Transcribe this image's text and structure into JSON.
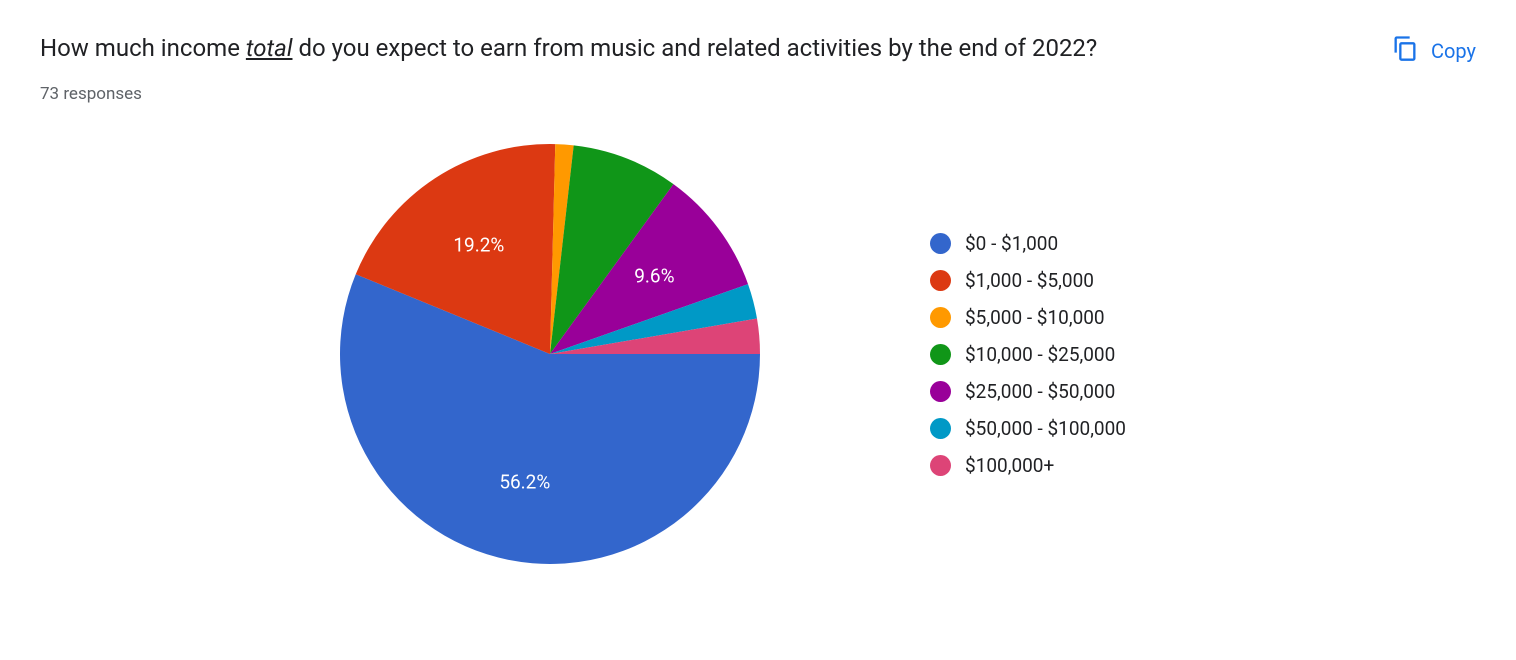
{
  "header": {
    "title_pre": "How much income ",
    "title_underlined": "total",
    "title_post": " do you expect to earn from music and related activities by the end of 2022?",
    "responses": "73 responses",
    "copy_label": "Copy"
  },
  "chart": {
    "type": "pie",
    "background_color": "#ffffff",
    "label_color": "#ffffff",
    "label_fontsize": 19,
    "legend_fontsize": 19,
    "legend_position": "right",
    "slices": [
      {
        "label": "$0 - $1,000",
        "value": 56.2,
        "color": "#3366cc",
        "show_label": true,
        "display": "56.2%"
      },
      {
        "label": "$1,000 - $5,000",
        "value": 19.2,
        "color": "#dc3912",
        "show_label": true,
        "display": "19.2%"
      },
      {
        "label": "$5,000 - $10,000",
        "value": 1.4,
        "color": "#ff9900",
        "show_label": false,
        "display": "1.4%"
      },
      {
        "label": "$10,000 - $25,000",
        "value": 8.2,
        "color": "#109618",
        "show_label": false,
        "display": "8.2%"
      },
      {
        "label": "$25,000 - $50,000",
        "value": 9.6,
        "color": "#990099",
        "show_label": true,
        "display": "9.6%"
      },
      {
        "label": "$50,000 - $100,000",
        "value": 2.7,
        "color": "#0099c6",
        "show_label": false,
        "display": "2.7%"
      },
      {
        "label": "$100,000+",
        "value": 2.7,
        "color": "#dd4477",
        "show_label": false,
        "display": "2.7%"
      }
    ]
  }
}
